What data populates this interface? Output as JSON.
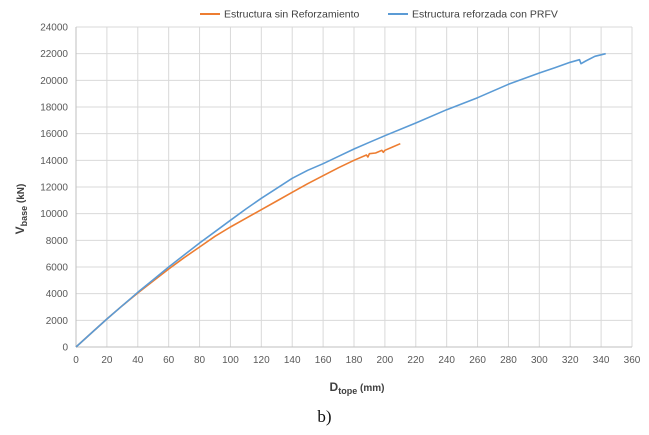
{
  "chart_data": {
    "type": "line",
    "xlabel": "D",
    "xlabel_sub": "tope",
    "xlabel_unit": "(mm)",
    "ylabel": "V",
    "ylabel_sub": "base",
    "ylabel_unit": "(kN)",
    "xlim": [
      0,
      360
    ],
    "ylim": [
      0,
      24000
    ],
    "x_ticks": [
      0,
      20,
      40,
      60,
      80,
      100,
      120,
      140,
      160,
      180,
      200,
      220,
      240,
      260,
      280,
      300,
      320,
      340,
      360
    ],
    "y_ticks": [
      0,
      2000,
      4000,
      6000,
      8000,
      10000,
      12000,
      14000,
      16000,
      18000,
      20000,
      22000,
      24000
    ],
    "grid": "major",
    "legend_position": "top",
    "series": [
      {
        "name": "Estructura sin Reforzamiento",
        "color": "#ED7D31",
        "points": [
          [
            0,
            0
          ],
          [
            10,
            1050
          ],
          [
            20,
            2100
          ],
          [
            30,
            3100
          ],
          [
            40,
            4050
          ],
          [
            50,
            4950
          ],
          [
            60,
            5850
          ],
          [
            70,
            6700
          ],
          [
            80,
            7500
          ],
          [
            90,
            8300
          ],
          [
            100,
            9000
          ],
          [
            110,
            9650
          ],
          [
            120,
            10300
          ],
          [
            130,
            10950
          ],
          [
            140,
            11600
          ],
          [
            150,
            12250
          ],
          [
            160,
            12850
          ],
          [
            170,
            13450
          ],
          [
            180,
            14000
          ],
          [
            188,
            14400
          ],
          [
            189,
            14250
          ],
          [
            190,
            14500
          ],
          [
            194,
            14550
          ],
          [
            198,
            14750
          ],
          [
            199,
            14600
          ],
          [
            200,
            14750
          ],
          [
            205,
            15000
          ],
          [
            210,
            15250
          ]
        ]
      },
      {
        "name": "Estructura reforzada con PRFV",
        "color": "#5B9BD5",
        "points": [
          [
            0,
            0
          ],
          [
            10,
            1050
          ],
          [
            20,
            2100
          ],
          [
            30,
            3100
          ],
          [
            40,
            4100
          ],
          [
            50,
            5050
          ],
          [
            60,
            6000
          ],
          [
            70,
            6900
          ],
          [
            80,
            7800
          ],
          [
            90,
            8650
          ],
          [
            100,
            9500
          ],
          [
            110,
            10350
          ],
          [
            120,
            11150
          ],
          [
            130,
            11900
          ],
          [
            140,
            12650
          ],
          [
            150,
            13250
          ],
          [
            160,
            13750
          ],
          [
            170,
            14300
          ],
          [
            180,
            14850
          ],
          [
            190,
            15350
          ],
          [
            200,
            15850
          ],
          [
            220,
            16800
          ],
          [
            240,
            17800
          ],
          [
            260,
            18700
          ],
          [
            280,
            19700
          ],
          [
            300,
            20550
          ],
          [
            310,
            20950
          ],
          [
            320,
            21350
          ],
          [
            326,
            21550
          ],
          [
            327,
            21250
          ],
          [
            330,
            21450
          ],
          [
            336,
            21800
          ],
          [
            343,
            22000
          ]
        ]
      }
    ]
  },
  "caption": "b)"
}
